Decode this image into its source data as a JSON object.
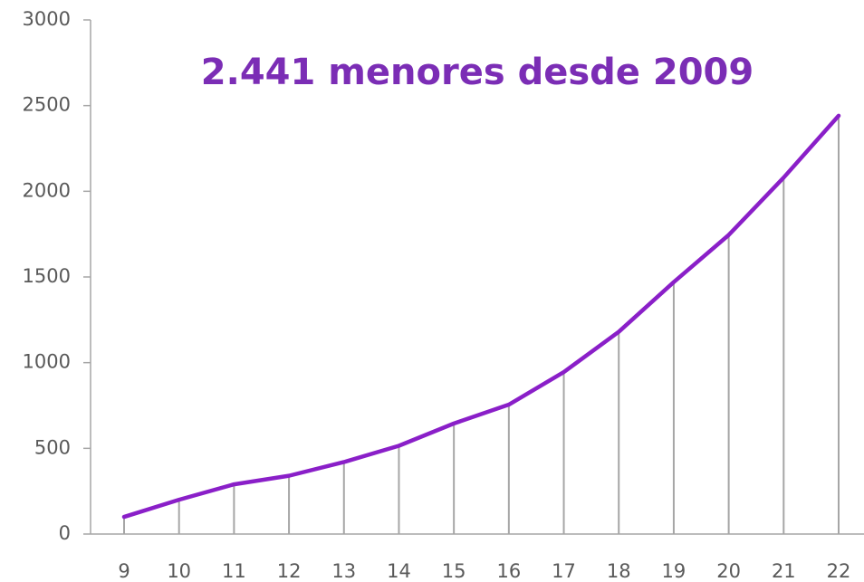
{
  "chart_data": {
    "type": "line",
    "title": "2.441 menores desde 2009",
    "categories": [
      "9",
      "10",
      "11",
      "12",
      "13",
      "14",
      "15",
      "16",
      "17",
      "18",
      "19",
      "20",
      "21",
      "22"
    ],
    "values": [
      100,
      200,
      290,
      340,
      420,
      515,
      645,
      755,
      945,
      1180,
      1470,
      1745,
      2080,
      2441
    ],
    "color": "#8a1fc8",
    "ylim": [
      0,
      3000
    ],
    "yticks": [
      0,
      500,
      1000,
      1500,
      2000,
      2500,
      3000
    ],
    "drop_lines": true
  }
}
